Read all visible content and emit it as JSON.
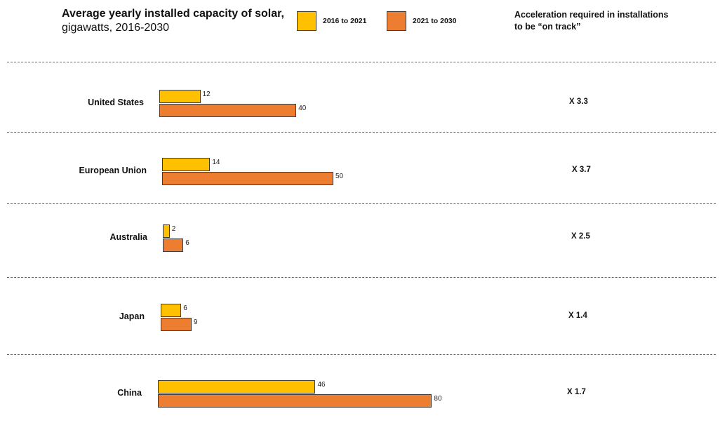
{
  "header": {
    "title_bold": "Average yearly installed capacity of solar,",
    "title_normal": " gigawatts, 2016-2030",
    "acceleration_header": "Acceleration required in installations to be “on track”"
  },
  "colors": {
    "series1": "#FFC000",
    "series2": "#ED7D31",
    "border": "#3B3B3B"
  },
  "chart_data": {
    "type": "bar",
    "orientation": "horizontal",
    "title": "Average yearly installed capacity of solar, gigawatts, 2016-2030",
    "categories": [
      "United States",
      "European Union",
      "Australia",
      "Japan",
      "China"
    ],
    "series": [
      {
        "name": "2016 to 2021",
        "values": [
          12,
          14,
          2,
          6,
          46
        ]
      },
      {
        "name": "2021 to 2030",
        "values": [
          40,
          50,
          6,
          9,
          80
        ]
      }
    ],
    "accelerations": [
      "X 3.3",
      "X 3.7",
      "X 2.5",
      "X 1.4",
      "X 1.7"
    ],
    "legend_position": "top",
    "grid": false
  }
}
